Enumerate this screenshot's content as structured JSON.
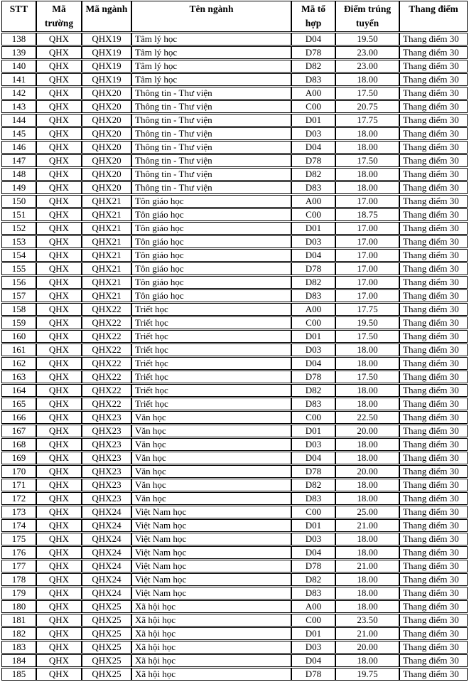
{
  "table": {
    "column_keys": [
      "stt",
      "ma-truong",
      "ma-nganh",
      "ten-nganh",
      "ma-to-hop",
      "diem-trung-tuyen",
      "thang-diem"
    ],
    "headers": [
      "STT",
      "Mã trường",
      "Mã ngành",
      "Tên ngành",
      "Mã tổ hợp",
      "Điểm trúng tuyển",
      "Thang điểm"
    ],
    "rows": [
      [
        "138",
        "QHX",
        "QHX19",
        "Tâm lý học",
        "D04",
        "19.50",
        "Thang điểm 30"
      ],
      [
        "139",
        "QHX",
        "QHX19",
        "Tâm lý học",
        "D78",
        "23.00",
        "Thang điểm 30"
      ],
      [
        "140",
        "QHX",
        "QHX19",
        "Tâm lý học",
        "D82",
        "23.00",
        "Thang điểm 30"
      ],
      [
        "141",
        "QHX",
        "QHX19",
        "Tâm lý học",
        "D83",
        "18.00",
        "Thang điểm 30"
      ],
      [
        "142",
        "QHX",
        "QHX20",
        "Thông tin - Thư viện",
        "A00",
        "17.50",
        "Thang điểm 30"
      ],
      [
        "143",
        "QHX",
        "QHX20",
        "Thông tin - Thư viện",
        "C00",
        "20.75",
        "Thang điểm 30"
      ],
      [
        "144",
        "QHX",
        "QHX20",
        "Thông tin - Thư viện",
        "D01",
        "17.75",
        "Thang điểm 30"
      ],
      [
        "145",
        "QHX",
        "QHX20",
        "Thông tin - Thư viện",
        "D03",
        "18.00",
        "Thang điểm 30"
      ],
      [
        "146",
        "QHX",
        "QHX20",
        "Thông tin - Thư viện",
        "D04",
        "18.00",
        "Thang điểm 30"
      ],
      [
        "147",
        "QHX",
        "QHX20",
        "Thông tin - Thư viện",
        "D78",
        "17.50",
        "Thang điểm 30"
      ],
      [
        "148",
        "QHX",
        "QHX20",
        "Thông tin - Thư viện",
        "D82",
        "18.00",
        "Thang điểm 30"
      ],
      [
        "149",
        "QHX",
        "QHX20",
        "Thông tin - Thư viện",
        "D83",
        "18.00",
        "Thang điểm 30"
      ],
      [
        "150",
        "QHX",
        "QHX21",
        "Tôn giáo học",
        "A00",
        "17.00",
        "Thang điểm 30"
      ],
      [
        "151",
        "QHX",
        "QHX21",
        "Tôn giáo học",
        "C00",
        "18.75",
        "Thang điểm 30"
      ],
      [
        "152",
        "QHX",
        "QHX21",
        "Tôn giáo học",
        "D01",
        "17.00",
        "Thang điểm 30"
      ],
      [
        "153",
        "QHX",
        "QHX21",
        "Tôn giáo học",
        "D03",
        "17.00",
        "Thang điểm 30"
      ],
      [
        "154",
        "QHX",
        "QHX21",
        "Tôn giáo học",
        "D04",
        "17.00",
        "Thang điểm 30"
      ],
      [
        "155",
        "QHX",
        "QHX21",
        "Tôn giáo học",
        "D78",
        "17.00",
        "Thang điểm 30"
      ],
      [
        "156",
        "QHX",
        "QHX21",
        "Tôn giáo học",
        "D82",
        "17.00",
        "Thang điểm 30"
      ],
      [
        "157",
        "QHX",
        "QHX21",
        "Tôn giáo học",
        "D83",
        "17.00",
        "Thang điểm 30"
      ],
      [
        "158",
        "QHX",
        "QHX22",
        "Triết học",
        "A00",
        "17.75",
        "Thang điểm 30"
      ],
      [
        "159",
        "QHX",
        "QHX22",
        "Triết học",
        "C00",
        "19.50",
        "Thang điểm 30"
      ],
      [
        "160",
        "QHX",
        "QHX22",
        "Triết học",
        "D01",
        "17.50",
        "Thang điểm 30"
      ],
      [
        "161",
        "QHX",
        "QHX22",
        "Triết học",
        "D03",
        "18.00",
        "Thang điểm 30"
      ],
      [
        "162",
        "QHX",
        "QHX22",
        "Triết học",
        "D04",
        "18.00",
        "Thang điểm 30"
      ],
      [
        "163",
        "QHX",
        "QHX22",
        "Triết học",
        "D78",
        "17.50",
        "Thang điểm 30"
      ],
      [
        "164",
        "QHX",
        "QHX22",
        "Triết học",
        "D82",
        "18.00",
        "Thang điểm 30"
      ],
      [
        "165",
        "QHX",
        "QHX22",
        "Triết học",
        "D83",
        "18.00",
        "Thang điểm 30"
      ],
      [
        "166",
        "QHX",
        "QHX23",
        "Văn học",
        "C00",
        "22.50",
        "Thang điểm 30"
      ],
      [
        "167",
        "QHX",
        "QHX23",
        "Văn học",
        "D01",
        "20.00",
        "Thang điểm 30"
      ],
      [
        "168",
        "QHX",
        "QHX23",
        "Văn học",
        "D03",
        "18.00",
        "Thang điểm 30"
      ],
      [
        "169",
        "QHX",
        "QHX23",
        "Văn học",
        "D04",
        "18.00",
        "Thang điểm 30"
      ],
      [
        "170",
        "QHX",
        "QHX23",
        "Văn học",
        "D78",
        "20.00",
        "Thang điểm 30"
      ],
      [
        "171",
        "QHX",
        "QHX23",
        "Văn học",
        "D82",
        "18.00",
        "Thang điểm 30"
      ],
      [
        "172",
        "QHX",
        "QHX23",
        "Văn học",
        "D83",
        "18.00",
        "Thang điểm 30"
      ],
      [
        "173",
        "QHX",
        "QHX24",
        "Việt Nam học",
        "C00",
        "25.00",
        "Thang điểm 30"
      ],
      [
        "174",
        "QHX",
        "QHX24",
        "Việt Nam học",
        "D01",
        "21.00",
        "Thang điểm 30"
      ],
      [
        "175",
        "QHX",
        "QHX24",
        "Việt Nam học",
        "D03",
        "18.00",
        "Thang điểm 30"
      ],
      [
        "176",
        "QHX",
        "QHX24",
        "Việt Nam học",
        "D04",
        "18.00",
        "Thang điểm 30"
      ],
      [
        "177",
        "QHX",
        "QHX24",
        "Việt Nam học",
        "D78",
        "21.00",
        "Thang điểm 30"
      ],
      [
        "178",
        "QHX",
        "QHX24",
        "Việt Nam học",
        "D82",
        "18.00",
        "Thang điểm 30"
      ],
      [
        "179",
        "QHX",
        "QHX24",
        "Việt Nam học",
        "D83",
        "18.00",
        "Thang điểm 30"
      ],
      [
        "180",
        "QHX",
        "QHX25",
        "Xã hội học",
        "A00",
        "18.00",
        "Thang điểm 30"
      ],
      [
        "181",
        "QHX",
        "QHX25",
        "Xã hội học",
        "C00",
        "23.50",
        "Thang điểm 30"
      ],
      [
        "182",
        "QHX",
        "QHX25",
        "Xã hội học",
        "D01",
        "21.00",
        "Thang điểm 30"
      ],
      [
        "183",
        "QHX",
        "QHX25",
        "Xã hội học",
        "D03",
        "20.00",
        "Thang điểm 30"
      ],
      [
        "184",
        "QHX",
        "QHX25",
        "Xã hội học",
        "D04",
        "18.00",
        "Thang điểm 30"
      ],
      [
        "185",
        "QHX",
        "QHX25",
        "Xã hội học",
        "D78",
        "19.75",
        "Thang điểm 30"
      ]
    ]
  }
}
